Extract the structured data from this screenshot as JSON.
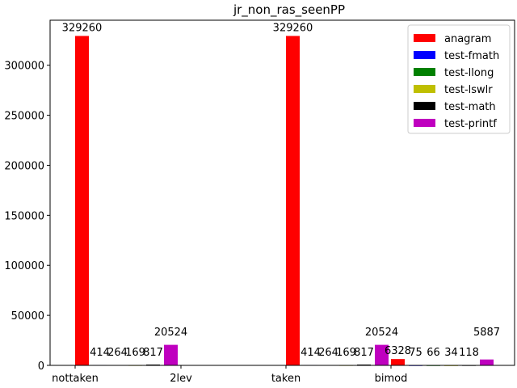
{
  "chart_data": {
    "type": "bar",
    "title": "jr_non_ras_seenPP",
    "xlabel": "",
    "ylabel": "",
    "ylim": [
      0,
      345000
    ],
    "yticks": [
      0,
      50000,
      100000,
      150000,
      200000,
      250000,
      300000
    ],
    "categories": [
      "nottaken",
      "2lev",
      "taken",
      "bimod"
    ],
    "legend_position": "top-right",
    "grid": false,
    "series": [
      {
        "name": "anagram",
        "color": "#ff0000",
        "values": [
          329260,
          null,
          329260,
          6328
        ]
      },
      {
        "name": "test-fmath",
        "color": "#0000ff",
        "values": [
          414,
          null,
          414,
          75
        ]
      },
      {
        "name": "test-llong",
        "color": "#008000",
        "values": [
          264,
          null,
          264,
          66
        ]
      },
      {
        "name": "test-lswlr",
        "color": "#bfbf00",
        "values": [
          169,
          null,
          169,
          34
        ]
      },
      {
        "name": "test-math",
        "color": "#000000",
        "values": [
          817,
          null,
          817,
          118
        ]
      },
      {
        "name": "test-printf",
        "color": "#bf00bf",
        "values": [
          20524,
          null,
          20524,
          5887
        ]
      }
    ]
  }
}
